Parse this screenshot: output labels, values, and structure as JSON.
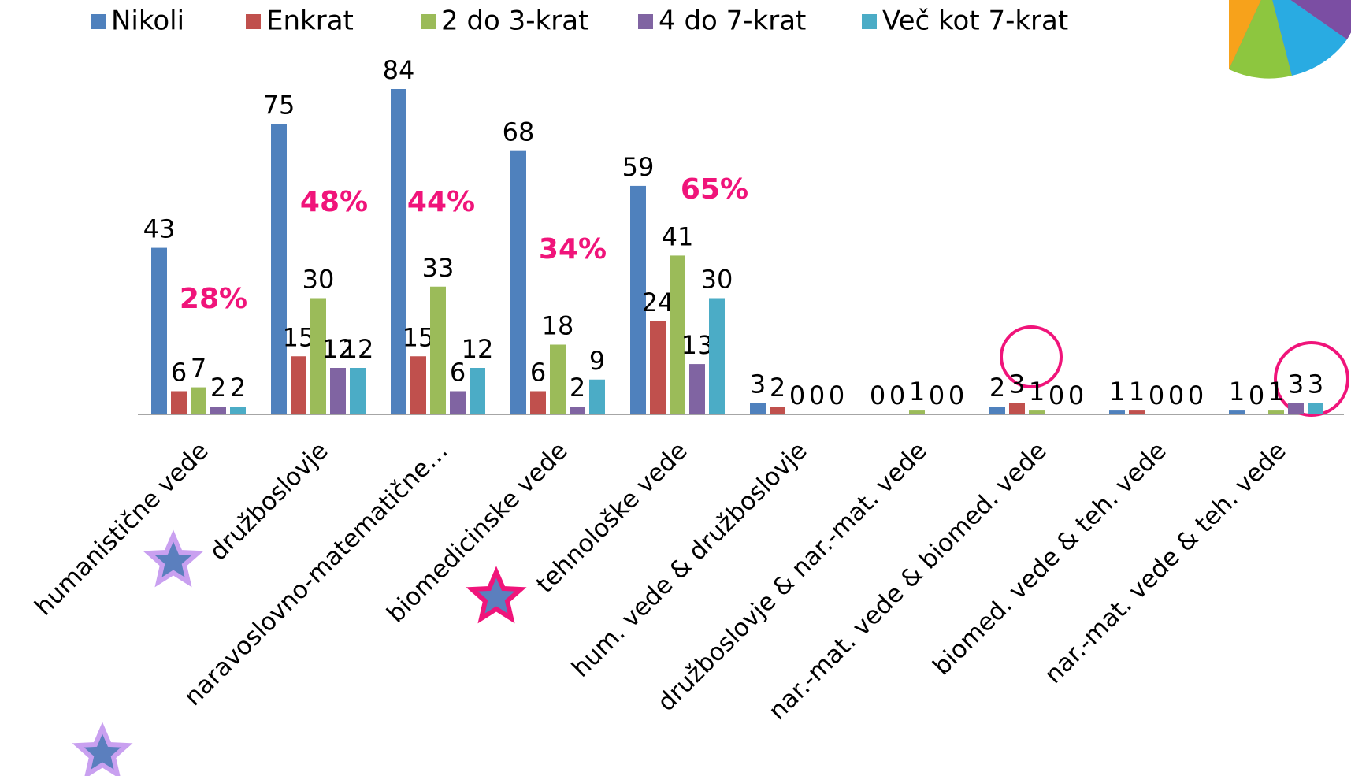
{
  "chart_data": {
    "type": "bar",
    "categories": [
      "humanistične vede",
      "družboslovje",
      "naravoslovno-matematične…",
      "biomedicinske vede",
      "tehnološke vede",
      "hum. vede & družboslovje",
      "družboslovje & nar.-mat. vede",
      "nar.-mat. vede & biomed. vede",
      "biomed. vede & teh. vede",
      "nar.-mat. vede & teh. vede"
    ],
    "series": [
      {
        "name": "Nikoli",
        "color": "#4f81bd",
        "values": [
          43,
          75,
          84,
          68,
          59,
          3,
          0,
          2,
          1,
          1
        ]
      },
      {
        "name": "Enkrat",
        "color": "#c0504d",
        "values": [
          6,
          15,
          15,
          6,
          24,
          2,
          0,
          3,
          1,
          0
        ]
      },
      {
        "name": "2 do 3-krat",
        "color": "#9bbb59",
        "values": [
          7,
          30,
          33,
          18,
          41,
          0,
          1,
          1,
          0,
          1
        ]
      },
      {
        "name": "4 do 7-krat",
        "color": "#8064a2",
        "values": [
          2,
          12,
          6,
          2,
          13,
          0,
          0,
          0,
          0,
          3
        ]
      },
      {
        "name": "Več kot 7-krat",
        "color": "#4bacc6",
        "values": [
          2,
          12,
          12,
          9,
          30,
          0,
          0,
          0,
          0,
          3
        ]
      }
    ],
    "annotations": [
      "28%",
      "48%",
      "44%",
      "34%",
      "65%"
    ],
    "legend": "top"
  }
}
